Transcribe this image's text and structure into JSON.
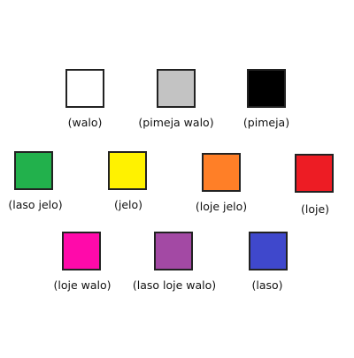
{
  "swatches": [
    {
      "label": "(walo)",
      "color": "#ffffff"
    },
    {
      "label": "(pimeja walo)",
      "color": "#c3c3c3"
    },
    {
      "label": "(pimeja)",
      "color": "#000000"
    },
    {
      "label": "(laso jelo)",
      "color": "#22b14c"
    },
    {
      "label": "(jelo)",
      "color": "#fff200"
    },
    {
      "label": "(loje jelo)",
      "color": "#ff7f27"
    },
    {
      "label": "(loje)",
      "color": "#ed1c24"
    },
    {
      "label": "(loje walo)",
      "color": "#ff0aaa"
    },
    {
      "label": "(laso loje walo)",
      "color": "#a349a4"
    },
    {
      "label": "(laso)",
      "color": "#3f48cc"
    }
  ]
}
